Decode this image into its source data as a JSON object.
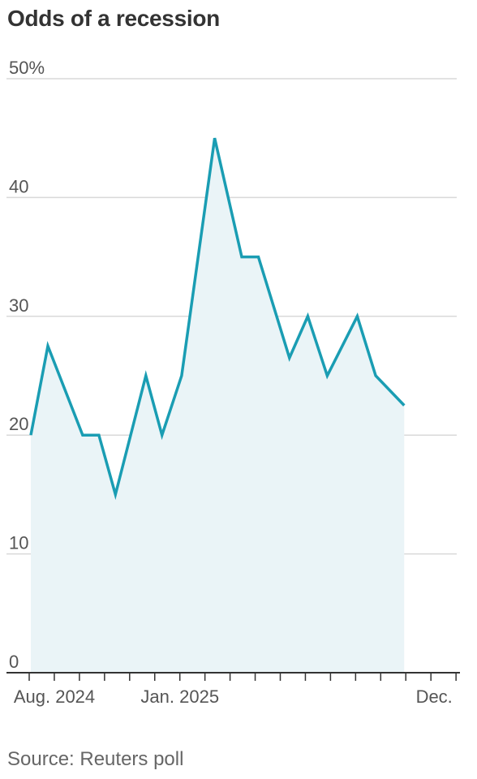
{
  "chart_data": {
    "type": "area",
    "title": "Odds of a recession",
    "source": "Source: Reuters poll",
    "ylim": [
      0,
      50
    ],
    "y_ticks": [
      {
        "value": 50,
        "label": "50%"
      },
      {
        "value": 40,
        "label": "40"
      },
      {
        "value": 30,
        "label": "30"
      },
      {
        "value": 20,
        "label": "20"
      },
      {
        "value": 10,
        "label": "10"
      },
      {
        "value": 0,
        "label": "0"
      }
    ],
    "x_labels": [
      {
        "month_index": 0,
        "label": "Aug. 2024"
      },
      {
        "month_index": 5,
        "label": "Jan. 2025"
      },
      {
        "month_index": 16,
        "label": "Dec."
      }
    ],
    "grid": true,
    "line_color": "#1a9db3",
    "fill_color": "#eaf4f7",
    "series": [
      {
        "points": [
          {
            "x": "2024-08-03",
            "y": 20
          },
          {
            "x": "2024-08-24",
            "y": 27.5
          },
          {
            "x": "2024-10-05",
            "y": 20
          },
          {
            "x": "2024-10-25",
            "y": 20
          },
          {
            "x": "2024-11-14",
            "y": 15
          },
          {
            "x": "2024-12-21",
            "y": 25
          },
          {
            "x": "2025-01-10",
            "y": 20
          },
          {
            "x": "2025-02-03",
            "y": 25
          },
          {
            "x": "2025-03-13",
            "y": 45
          },
          {
            "x": "2025-04-15",
            "y": 35
          },
          {
            "x": "2025-05-05",
            "y": 35
          },
          {
            "x": "2025-06-12",
            "y": 26.5
          },
          {
            "x": "2025-07-04",
            "y": 30
          },
          {
            "x": "2025-07-28",
            "y": 25
          },
          {
            "x": "2025-09-03",
            "y": 30
          },
          {
            "x": "2025-09-25",
            "y": 25
          },
          {
            "x": "2025-10-30",
            "y": 22.5
          }
        ]
      }
    ]
  }
}
